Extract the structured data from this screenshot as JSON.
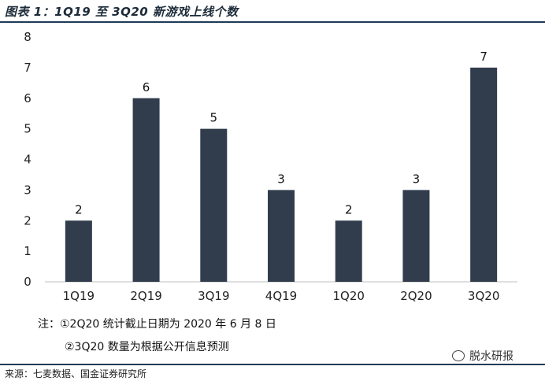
{
  "title": "图表 1：1Q19 至 3Q20 新游戏上线个数",
  "chart_data": {
    "type": "bar",
    "categories": [
      "1Q19",
      "2Q19",
      "3Q19",
      "4Q19",
      "1Q20",
      "2Q20",
      "3Q20"
    ],
    "values": [
      2,
      6,
      5,
      3,
      2,
      3,
      7
    ],
    "ylim": [
      0,
      8
    ],
    "yticks": [
      0,
      1,
      2,
      3,
      4,
      5,
      6,
      7,
      8
    ],
    "grid": false,
    "bar_color": "#313d4d",
    "data_labels": true
  },
  "notes": {
    "line1": "注：①2Q20 统计截止日期为 2020 年 6 月 8 日",
    "line2": "②3Q20 数量为根据公开信息预测"
  },
  "watermark": "脱水研报",
  "source": "来源：七麦数据、国金证券研究所"
}
